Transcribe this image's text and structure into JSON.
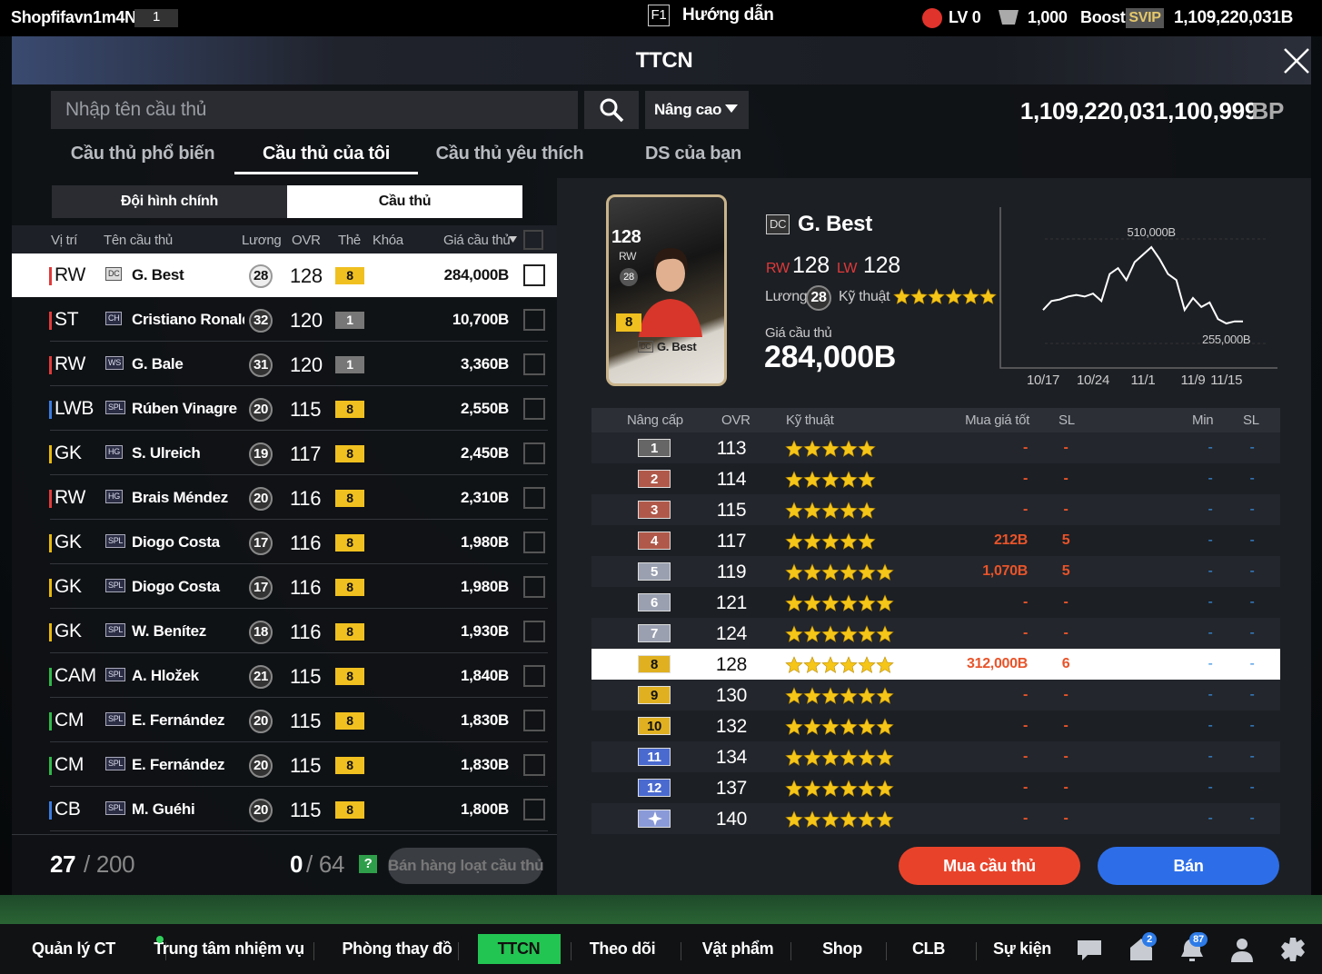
{
  "top_bar": {
    "username": "Shopfifavn1m4N",
    "user_id": "1",
    "f1_key": "F1",
    "guide": "Hướng dẫn",
    "level": "LV 0",
    "coins": "1,000",
    "boost": "Boost",
    "svip": "SVIP",
    "balance": "1,109,220,031B"
  },
  "header": {
    "title": "TTCN"
  },
  "search": {
    "placeholder": "Nhập tên cầu thủ",
    "advanced": "Nâng cao",
    "bp_amount": "1,109,220,031,100,999",
    "bp_unit": "BP"
  },
  "tabs": {
    "items": [
      "Cầu thủ phổ biến",
      "Cầu thủ của tôi",
      "Cầu thủ yêu thích",
      "DS của bạn"
    ],
    "selected": 1
  },
  "subtabs": {
    "items": [
      "Đội hình chính",
      "Cầu thủ"
    ],
    "selected": 1
  },
  "player_table": {
    "columns": [
      "Vị trí",
      "Tên cầu thủ",
      "Lương",
      "OVR",
      "Thẻ",
      "Khóa",
      "Giá cầu thủ"
    ],
    "selected": 0,
    "rows": [
      {
        "position": "RW",
        "season": "DC",
        "name": "G. Best",
        "salary": "28",
        "ovr": "128",
        "card_level": "8",
        "price": "284,000B"
      },
      {
        "position": "ST",
        "season": "CH",
        "name": "Cristiano Ronaldo",
        "salary": "32",
        "ovr": "120",
        "card_level": "1",
        "price": "10,700B"
      },
      {
        "position": "RW",
        "season": "WS",
        "name": "G. Bale",
        "salary": "31",
        "ovr": "120",
        "card_level": "1",
        "price": "3,360B"
      },
      {
        "position": "LWB",
        "season": "SPL",
        "name": "Rúben Vinagre",
        "salary": "20",
        "ovr": "115",
        "card_level": "8",
        "price": "2,550B"
      },
      {
        "position": "GK",
        "season": "HG",
        "name": "S. Ulreich",
        "salary": "19",
        "ovr": "117",
        "card_level": "8",
        "price": "2,450B"
      },
      {
        "position": "RW",
        "season": "HG",
        "name": "Brais Méndez",
        "salary": "20",
        "ovr": "116",
        "card_level": "8",
        "price": "2,310B"
      },
      {
        "position": "GK",
        "season": "SPL",
        "name": "Diogo Costa",
        "salary": "17",
        "ovr": "116",
        "card_level": "8",
        "price": "1,980B"
      },
      {
        "position": "GK",
        "season": "SPL",
        "name": "Diogo Costa",
        "salary": "17",
        "ovr": "116",
        "card_level": "8",
        "price": "1,980B"
      },
      {
        "position": "GK",
        "season": "SPL",
        "name": "W. Benítez",
        "salary": "18",
        "ovr": "116",
        "card_level": "8",
        "price": "1,930B"
      },
      {
        "position": "CAM",
        "season": "SPL",
        "name": "A. Hložek",
        "salary": "21",
        "ovr": "115",
        "card_level": "8",
        "price": "1,840B"
      },
      {
        "position": "CM",
        "season": "SPL",
        "name": "E. Fernández",
        "salary": "20",
        "ovr": "115",
        "card_level": "8",
        "price": "1,830B"
      },
      {
        "position": "CM",
        "season": "SPL",
        "name": "E. Fernández",
        "salary": "20",
        "ovr": "115",
        "card_level": "8",
        "price": "1,830B"
      },
      {
        "position": "CB",
        "season": "SPL",
        "name": "M. Guéhi",
        "salary": "20",
        "ovr": "115",
        "card_level": "8",
        "price": "1,800B"
      }
    ]
  },
  "footer": {
    "count": "27",
    "capacity": "/ 200",
    "selected": "0",
    "limit": "/ 64",
    "help": "?",
    "bulk_sell": "Bán hàng loạt cầu thủ"
  },
  "detail": {
    "card": {
      "ovr": "128",
      "position": "RW",
      "salary": "28",
      "level": "8",
      "season": "DC",
      "name": "G. Best"
    },
    "season": "DC",
    "name": "G. Best",
    "positions": [
      {
        "pos": "RW",
        "ovr": "128"
      },
      {
        "pos": "LW",
        "ovr": "128"
      }
    ],
    "salary_label": "Lương",
    "salary": "28",
    "skill_label": "Kỹ thuật",
    "skill_stars": 6,
    "price_label": "Giá cầu thủ",
    "price": "284,000B"
  },
  "chart_data": {
    "type": "line",
    "color": "#ffffff",
    "categories": [
      "10/17",
      null,
      null,
      null,
      null,
      null,
      "10/24",
      null,
      null,
      null,
      null,
      null,
      "11/1",
      null,
      null,
      null,
      null,
      null,
      "11/9",
      null,
      null,
      null,
      "11/15",
      null,
      null
    ],
    "values": [
      300000,
      330000,
      335000,
      345000,
      350000,
      345000,
      355000,
      330000,
      420000,
      440000,
      400000,
      460000,
      485000,
      510000,
      470000,
      420000,
      400000,
      300000,
      340000,
      310000,
      325000,
      270000,
      255000,
      262000,
      262000
    ],
    "annotations": [
      {
        "value": 510000,
        "label": "510,000B"
      },
      {
        "value": 255000,
        "label": "255,000B"
      }
    ]
  },
  "upgrade_table": {
    "columns": [
      "Nâng cấp",
      "OVR",
      "Kỹ thuật",
      "Mua giá tốt",
      "SL",
      "Min",
      "SL"
    ],
    "selected": 7,
    "rows": [
      {
        "level": "1",
        "ovr": "113",
        "stars": 5,
        "best_price": "-",
        "best_qty": "-",
        "min": "-",
        "min_qty": "-"
      },
      {
        "level": "2",
        "ovr": "114",
        "stars": 5,
        "best_price": "-",
        "best_qty": "-",
        "min": "-",
        "min_qty": "-"
      },
      {
        "level": "3",
        "ovr": "115",
        "stars": 5,
        "best_price": "-",
        "best_qty": "-",
        "min": "-",
        "min_qty": "-"
      },
      {
        "level": "4",
        "ovr": "117",
        "stars": 5,
        "best_price": "212B",
        "best_qty": "5",
        "min": "-",
        "min_qty": "-"
      },
      {
        "level": "5",
        "ovr": "119",
        "stars": 6,
        "best_price": "1,070B",
        "best_qty": "5",
        "min": "-",
        "min_qty": "-"
      },
      {
        "level": "6",
        "ovr": "121",
        "stars": 6,
        "best_price": "-",
        "best_qty": "-",
        "min": "-",
        "min_qty": "-"
      },
      {
        "level": "7",
        "ovr": "124",
        "stars": 6,
        "best_price": "-",
        "best_qty": "-",
        "min": "-",
        "min_qty": "-"
      },
      {
        "level": "8",
        "ovr": "128",
        "stars": 6,
        "best_price": "312,000B",
        "best_qty": "6",
        "min": "-",
        "min_qty": "-"
      },
      {
        "level": "9",
        "ovr": "130",
        "stars": 6,
        "best_price": "-",
        "best_qty": "-",
        "min": "-",
        "min_qty": "-"
      },
      {
        "level": "10",
        "ovr": "132",
        "stars": 6,
        "best_price": "-",
        "best_qty": "-",
        "min": "-",
        "min_qty": "-"
      },
      {
        "level": "11",
        "ovr": "134",
        "stars": 6,
        "best_price": "-",
        "best_qty": "-",
        "min": "-",
        "min_qty": "-"
      },
      {
        "level": "12",
        "ovr": "137",
        "stars": 6,
        "best_price": "-",
        "best_qty": "-",
        "min": "-",
        "min_qty": "-"
      },
      {
        "level": null,
        "ovr": "140",
        "stars": 6,
        "best_price": "-",
        "best_qty": "-",
        "min": "-",
        "min_qty": "-"
      }
    ]
  },
  "actions": {
    "buy": "Mua cầu thủ",
    "sell": "Bán"
  },
  "nav": {
    "items": [
      "Quản lý CT",
      "Trung tâm nhiệm vụ",
      "Phòng thay đồ",
      "TTCN",
      "Theo dõi",
      "Vật phẩm",
      "Shop",
      "CLB",
      "Sự kiện"
    ],
    "selected": 3,
    "badges": [
      "2",
      "87"
    ]
  }
}
